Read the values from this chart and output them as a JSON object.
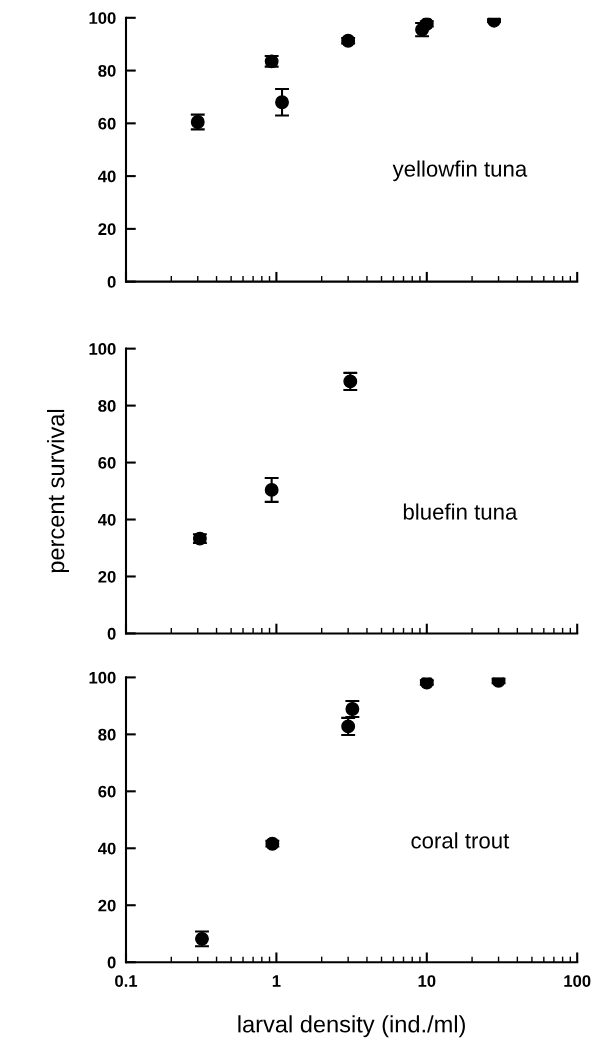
{
  "chart_data": [
    {
      "type": "scatter",
      "x": [
        0.3,
        0.93,
        1.09,
        3.0,
        9.3,
        10,
        28
      ],
      "values": [
        60.5,
        83.5,
        68,
        91.3,
        95.5,
        97.7,
        98.9
      ],
      "errors": [
        2.8,
        2,
        5,
        1,
        2.5,
        1,
        0.5
      ],
      "color": "#000000",
      "marker": "circle",
      "log": "x",
      "xlim": [
        0.1,
        100
      ],
      "xticks": [
        0.1,
        1,
        10,
        100
      ],
      "ylim": [
        0,
        100
      ],
      "yticks": [
        0,
        20,
        40,
        60,
        80,
        100
      ],
      "tick_labels": "y",
      "annotations": [
        "yellowfin tuna"
      ]
    },
    {
      "type": "scatter",
      "x": [
        0.31,
        0.93,
        3.1
      ],
      "values": [
        33.3,
        50.4,
        88.5
      ],
      "errors": [
        1.5,
        4.2,
        3
      ],
      "color": "#000000",
      "marker": "circle",
      "log": "x",
      "xlim": [
        0.1,
        100
      ],
      "xticks": [
        0.1,
        1,
        10,
        100
      ],
      "ylim": [
        0,
        100
      ],
      "yticks": [
        0,
        20,
        40,
        60,
        80,
        100
      ],
      "tick_labels": "y",
      "ylabel": "percent survival",
      "annotations": [
        "bluefin tuna"
      ]
    },
    {
      "type": "scatter",
      "x": [
        0.32,
        0.94,
        3.2,
        3.0,
        10,
        30
      ],
      "values": [
        8.2,
        41.6,
        88.9,
        82.8,
        98.2,
        98.8
      ],
      "errors": [
        2.6,
        1,
        2.8,
        3,
        0.8,
        0.8
      ],
      "color": "#000000",
      "marker": "circle",
      "log": "x",
      "xlim": [
        0.1,
        100
      ],
      "xticks": [
        0.1,
        1,
        10,
        100
      ],
      "ylim": [
        0,
        100
      ],
      "yticks": [
        0,
        20,
        40,
        60,
        80,
        100
      ],
      "xlabel": "larval density (ind./ml)",
      "annotations": [
        "coral trout"
      ]
    }
  ]
}
